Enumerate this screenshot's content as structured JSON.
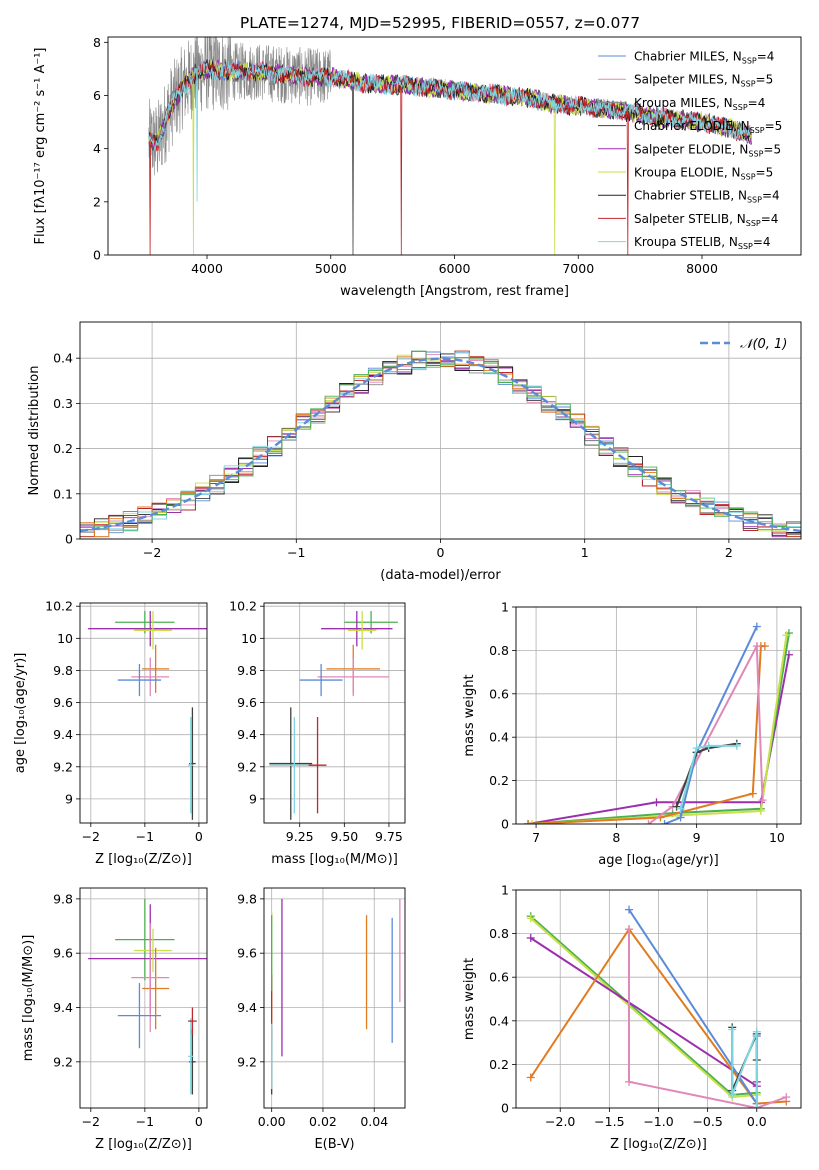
{
  "figure_title": "PLATE=1274, MJD=52995, FIBERID=0557, z=0.077",
  "colors": {
    "legend_gray": "#888888",
    "normal_curve": "#5b8bd9",
    "grid": "#b0b0b0"
  },
  "chart_data": [
    {
      "id": "spectrum",
      "type": "line",
      "title": "PLATE=1274, MJD=52995, FIBERID=0557, z=0.077",
      "xlabel": "wavelength [Angstrom, rest frame]",
      "ylabel": "Flux [fλ10⁻¹⁷ erg cm⁻² s⁻¹ A⁻¹]",
      "xlim": [
        3200,
        8800
      ],
      "ylim": [
        0,
        8.2
      ],
      "xticks": [
        4000,
        5000,
        6000,
        7000,
        8000
      ],
      "yticks": [
        0,
        2,
        4,
        6,
        8
      ],
      "grid": false,
      "legend_placement": "upper right",
      "series": [
        {
          "name": "Chabrier MILES, N_SSP=4",
          "color": "#5b8bd9"
        },
        {
          "name": "Salpeter MILES, N_SSP=5",
          "color": "#e088b8"
        },
        {
          "name": "Kroupa MILES, N_SSP=4",
          "color": "#888888"
        },
        {
          "name": "Chabrier ELODIE, N_SSP=5",
          "color": "#404040"
        },
        {
          "name": "Salpeter ELODIE, N_SSP=5",
          "color": "#9b2fae"
        },
        {
          "name": "Kroupa ELODIE, N_SSP=5",
          "color": "#c8e04a"
        },
        {
          "name": "Chabrier STELIB, N_SSP=4",
          "color": "#222222"
        },
        {
          "name": "Salpeter STELIB, N_SSP=4",
          "color": "#c0272d"
        },
        {
          "name": "Kroupa STELIB, N_SSP=4",
          "color": "#7fd6e0"
        }
      ],
      "continuum": {
        "x": [
          3530,
          3600,
          3700,
          3800,
          3900,
          4000,
          4200,
          4400,
          4600,
          4800,
          5000,
          5200,
          5400,
          5600,
          5800,
          6000,
          6200,
          6400,
          6600,
          6800,
          7000,
          7200,
          7400,
          7600,
          7800,
          8000,
          8200,
          8400
        ],
        "y": [
          4.3,
          4.2,
          5.5,
          6.3,
          6.8,
          7.0,
          6.9,
          6.9,
          6.8,
          6.7,
          6.7,
          6.5,
          6.4,
          6.4,
          6.3,
          6.2,
          6.1,
          6.0,
          5.9,
          5.7,
          5.6,
          5.5,
          5.4,
          5.2,
          5.1,
          5.0,
          4.8,
          4.5
        ]
      }
    },
    {
      "id": "residual_hist",
      "type": "histogram",
      "xlabel": "(data-model)/error",
      "ylabel": "Normed distribution",
      "xlim": [
        -2.5,
        2.5
      ],
      "ylim": [
        0,
        0.48
      ],
      "xticks": [
        -2,
        -1,
        0,
        1,
        2
      ],
      "yticks": [
        0.0,
        0.1,
        0.2,
        0.3,
        0.4
      ],
      "grid": true,
      "legend_placement": "upper right",
      "reference_curve": {
        "name": "𝒩(0, 1)",
        "color": "#5b8bd9",
        "mean": 0,
        "sigma": 1
      },
      "bin_width": 0.1,
      "series_colors": [
        "#5b8bd9",
        "#e088b8",
        "#888888",
        "#404040",
        "#9b2fae",
        "#c8e04a",
        "#222222",
        "#c0272d",
        "#7fd6e0",
        "#e07b1f",
        "#4caf50"
      ]
    },
    {
      "id": "age_vs_Z",
      "type": "errorbar",
      "xlabel": "Z [log₁₀(Z/Z⊙)]",
      "ylabel": "age  [log₁₀(age/yr)]",
      "xlim": [
        -2.2,
        0.15
      ],
      "ylim": [
        8.85,
        10.22
      ],
      "xticks": [
        -2,
        -1,
        0
      ],
      "yticks": [
        9.0,
        9.2,
        9.4,
        9.6,
        9.8,
        10.0,
        10.2
      ],
      "grid": true,
      "points": [
        {
          "x": -1.0,
          "y": 10.1,
          "xerr": 0.55,
          "yerr": 0.07,
          "color": "#4caf50"
        },
        {
          "x": -0.9,
          "y": 10.06,
          "xerr": 1.15,
          "yerr": 0.11,
          "color": "#9b2fae"
        },
        {
          "x": -0.85,
          "y": 10.05,
          "xerr": 0.35,
          "yerr": 0.12,
          "color": "#c8e04a"
        },
        {
          "x": -0.8,
          "y": 9.81,
          "xerr": 0.25,
          "yerr": 0.15,
          "color": "#e07b1f"
        },
        {
          "x": -0.9,
          "y": 9.76,
          "xerr": 0.35,
          "yerr": 0.12,
          "color": "#e088b8"
        },
        {
          "x": -1.1,
          "y": 9.74,
          "xerr": 0.4,
          "yerr": 0.1,
          "color": "#5b8bd9"
        },
        {
          "x": -0.12,
          "y": 9.22,
          "xerr": 0.06,
          "yerr": 0.35,
          "color": "#404040"
        },
        {
          "x": -0.15,
          "y": 9.21,
          "xerr": 0.05,
          "yerr": 0.3,
          "color": "#7fd6e0"
        }
      ]
    },
    {
      "id": "age_vs_mass",
      "type": "errorbar",
      "xlabel": "mass [log₁₀(M/M⊙)]",
      "ylabel": "",
      "xlim": [
        9.05,
        9.84
      ],
      "ylim": [
        8.85,
        10.22
      ],
      "xticks": [
        9.25,
        9.5,
        9.75
      ],
      "xticklabels": [
        "9.25",
        "9.50",
        "9.75"
      ],
      "yticks": [
        9.0,
        9.2,
        9.4,
        9.6,
        9.8,
        10.0,
        10.2
      ],
      "grid": true,
      "points": [
        {
          "x": 9.65,
          "y": 10.1,
          "xerr": 0.15,
          "yerr": 0.07,
          "color": "#4caf50"
        },
        {
          "x": 9.57,
          "y": 10.06,
          "xerr": 0.2,
          "yerr": 0.11,
          "color": "#9b2fae"
        },
        {
          "x": 9.6,
          "y": 10.05,
          "xerr": 0.08,
          "yerr": 0.12,
          "color": "#c8e04a"
        },
        {
          "x": 9.55,
          "y": 9.81,
          "xerr": 0.15,
          "yerr": 0.15,
          "color": "#e07b1f"
        },
        {
          "x": 9.55,
          "y": 9.76,
          "xerr": 0.2,
          "yerr": 0.12,
          "color": "#e088b8"
        },
        {
          "x": 9.37,
          "y": 9.74,
          "xerr": 0.12,
          "yerr": 0.1,
          "color": "#5b8bd9"
        },
        {
          "x": 9.2,
          "y": 9.22,
          "xerr": 0.12,
          "yerr": 0.35,
          "color": "#404040"
        },
        {
          "x": 9.22,
          "y": 9.21,
          "xerr": 0.14,
          "yerr": 0.3,
          "color": "#7fd6e0"
        },
        {
          "x": 9.35,
          "y": 9.21,
          "xerr": 0.05,
          "yerr": 0.3,
          "color": "#c0272d"
        }
      ]
    },
    {
      "id": "weight_vs_age",
      "type": "line",
      "xlabel": "age  [log₁₀(age/yr)]",
      "ylabel": "mass weight",
      "xlim": [
        6.75,
        10.3
      ],
      "ylim": [
        0,
        1.0
      ],
      "xticks": [
        7,
        8,
        9,
        10
      ],
      "yticks": [
        0.0,
        0.2,
        0.4,
        0.6,
        0.8,
        1.0
      ],
      "grid": true,
      "series": [
        {
          "color": "#9b2fae",
          "x": [
            6.9,
            8.5,
            9.8,
            10.15
          ],
          "y": [
            0.0,
            0.1,
            0.1,
            0.78
          ]
        },
        {
          "color": "#4caf50",
          "x": [
            6.9,
            8.7,
            9.8,
            10.15
          ],
          "y": [
            0.0,
            0.05,
            0.07,
            0.88
          ]
        },
        {
          "color": "#c8e04a",
          "x": [
            6.95,
            8.8,
            9.8,
            10.12
          ],
          "y": [
            0.0,
            0.04,
            0.06,
            0.87
          ]
        },
        {
          "color": "#e07b1f",
          "x": [
            6.9,
            8.55,
            9.7,
            9.8,
            9.85
          ],
          "y": [
            0.0,
            0.03,
            0.14,
            0.82,
            0.82
          ]
        },
        {
          "color": "#e088b8",
          "x": [
            8.4,
            8.7,
            9.75,
            9.82
          ],
          "y": [
            0.0,
            0.08,
            0.82,
            0.11
          ]
        },
        {
          "color": "#5b8bd9",
          "x": [
            8.6,
            8.8,
            9.0,
            9.75
          ],
          "y": [
            0.0,
            0.03,
            0.33,
            0.91
          ]
        },
        {
          "color": "#404040",
          "x": [
            8.75,
            9.0,
            9.15,
            9.5
          ],
          "y": [
            0.08,
            0.33,
            0.35,
            0.37
          ]
        },
        {
          "color": "#7fd6e0",
          "x": [
            8.8,
            9.0,
            9.15,
            9.5
          ],
          "y": [
            0.07,
            0.35,
            0.36,
            0.36
          ]
        }
      ]
    },
    {
      "id": "mass_vs_Z",
      "type": "errorbar",
      "xlabel": "Z [log₁₀(Z/Z⊙)]",
      "ylabel": "mass [log₁₀(M/M⊙)]",
      "xlim": [
        -2.2,
        0.15
      ],
      "ylim": [
        9.03,
        9.84
      ],
      "xticks": [
        -2,
        -1,
        0
      ],
      "yticks": [
        9.2,
        9.4,
        9.6,
        9.8
      ],
      "grid": true,
      "points": [
        {
          "x": -1.0,
          "y": 9.65,
          "xerr": 0.55,
          "yerr": 0.15,
          "color": "#4caf50"
        },
        {
          "x": -0.9,
          "y": 9.58,
          "xerr": 1.15,
          "yerr": 0.2,
          "color": "#9b2fae"
        },
        {
          "x": -0.85,
          "y": 9.61,
          "xerr": 0.35,
          "yerr": 0.08,
          "color": "#c8e04a"
        },
        {
          "x": -0.8,
          "y": 9.47,
          "xerr": 0.25,
          "yerr": 0.15,
          "color": "#e07b1f"
        },
        {
          "x": -0.9,
          "y": 9.51,
          "xerr": 0.35,
          "yerr": 0.2,
          "color": "#e088b8"
        },
        {
          "x": -1.1,
          "y": 9.37,
          "xerr": 0.4,
          "yerr": 0.12,
          "color": "#5b8bd9"
        },
        {
          "x": -0.12,
          "y": 9.2,
          "xerr": 0.06,
          "yerr": 0.12,
          "color": "#404040"
        },
        {
          "x": -0.15,
          "y": 9.22,
          "xerr": 0.05,
          "yerr": 0.14,
          "color": "#7fd6e0"
        },
        {
          "x": -0.12,
          "y": 9.35,
          "xerr": 0.08,
          "yerr": 0.05,
          "color": "#c0272d"
        }
      ]
    },
    {
      "id": "mass_vs_ebv",
      "type": "errorbar",
      "xlabel": "E(B-V)",
      "ylabel": "",
      "xlim": [
        -0.003,
        0.052
      ],
      "ylim": [
        9.03,
        9.84
      ],
      "xticks": [
        0.0,
        0.02,
        0.04
      ],
      "xticklabels": [
        "0.00",
        "0.02",
        "0.04"
      ],
      "yticks": [
        9.2,
        9.4,
        9.6,
        9.8
      ],
      "grid": true,
      "points": [
        {
          "x": 0.0,
          "y": 9.55,
          "xerr": 0,
          "yerr": 0.2,
          "color": "#c8e04a"
        },
        {
          "x": 0.0,
          "y": 9.4,
          "xerr": 0,
          "yerr": 0.12,
          "color": "#c0272d"
        },
        {
          "x": 0.0,
          "y": 9.2,
          "xerr": 0,
          "yerr": 0.12,
          "color": "#404040"
        },
        {
          "x": 0.0,
          "y": 9.22,
          "xerr": 0,
          "yerr": 0.12,
          "color": "#7fd6e0"
        },
        {
          "x": 0.0,
          "y": 9.6,
          "xerr": 0,
          "yerr": 0.14,
          "color": "#4caf50"
        },
        {
          "x": 0.004,
          "y": 9.51,
          "xerr": 0,
          "yerr": 0.29,
          "color": "#9b2fae"
        },
        {
          "x": 0.037,
          "y": 9.53,
          "xerr": 0,
          "yerr": 0.21,
          "color": "#e07b1f"
        },
        {
          "x": 0.047,
          "y": 9.5,
          "xerr": 0,
          "yerr": 0.23,
          "color": "#5b8bd9"
        },
        {
          "x": 0.05,
          "y": 9.61,
          "xerr": 0,
          "yerr": 0.19,
          "color": "#e088b8"
        }
      ]
    },
    {
      "id": "weight_vs_Z",
      "type": "line",
      "xlabel": "Z [log₁₀(Z/Z⊙)]",
      "ylabel": "mass weight",
      "xlim": [
        -2.45,
        0.45
      ],
      "ylim": [
        0,
        1.0
      ],
      "xticks": [
        -2.0,
        -1.5,
        -1.0,
        -0.5,
        0.0
      ],
      "xticklabels": [
        "−2.0",
        "−1.5",
        "−1.0",
        "−0.5",
        "0.0"
      ],
      "yticks": [
        0.0,
        0.2,
        0.4,
        0.6,
        0.8,
        1.0
      ],
      "grid": true,
      "series": [
        {
          "color": "#4caf50",
          "x": [
            -2.3,
            -0.25,
            0.0
          ],
          "y": [
            0.88,
            0.06,
            0.07
          ]
        },
        {
          "color": "#c8e04a",
          "x": [
            -2.3,
            -0.25,
            0.0
          ],
          "y": [
            0.87,
            0.05,
            0.06
          ]
        },
        {
          "color": "#9b2fae",
          "x": [
            -2.3,
            0.0,
            0.0
          ],
          "y": [
            0.78,
            0.1,
            0.12
          ]
        },
        {
          "color": "#e07b1f",
          "x": [
            -2.3,
            -1.3,
            0.0,
            0.3
          ],
          "y": [
            0.14,
            0.82,
            0.02,
            0.03
          ]
        },
        {
          "color": "#e088b8",
          "x": [
            -1.3,
            -1.3,
            0.0,
            0.3
          ],
          "y": [
            0.82,
            0.12,
            0.0,
            0.05
          ]
        },
        {
          "color": "#5b8bd9",
          "x": [
            -1.3,
            0.0,
            0.0
          ],
          "y": [
            0.91,
            0.02,
            0.33
          ]
        },
        {
          "color": "#404040",
          "x": [
            -0.25,
            -0.25,
            0.0,
            0.0
          ],
          "y": [
            0.37,
            0.08,
            0.34,
            0.22
          ]
        },
        {
          "color": "#7fd6e0",
          "x": [
            -0.25,
            -0.25,
            0.0,
            0.0
          ],
          "y": [
            0.36,
            0.06,
            0.35,
            0.0
          ]
        }
      ]
    }
  ]
}
